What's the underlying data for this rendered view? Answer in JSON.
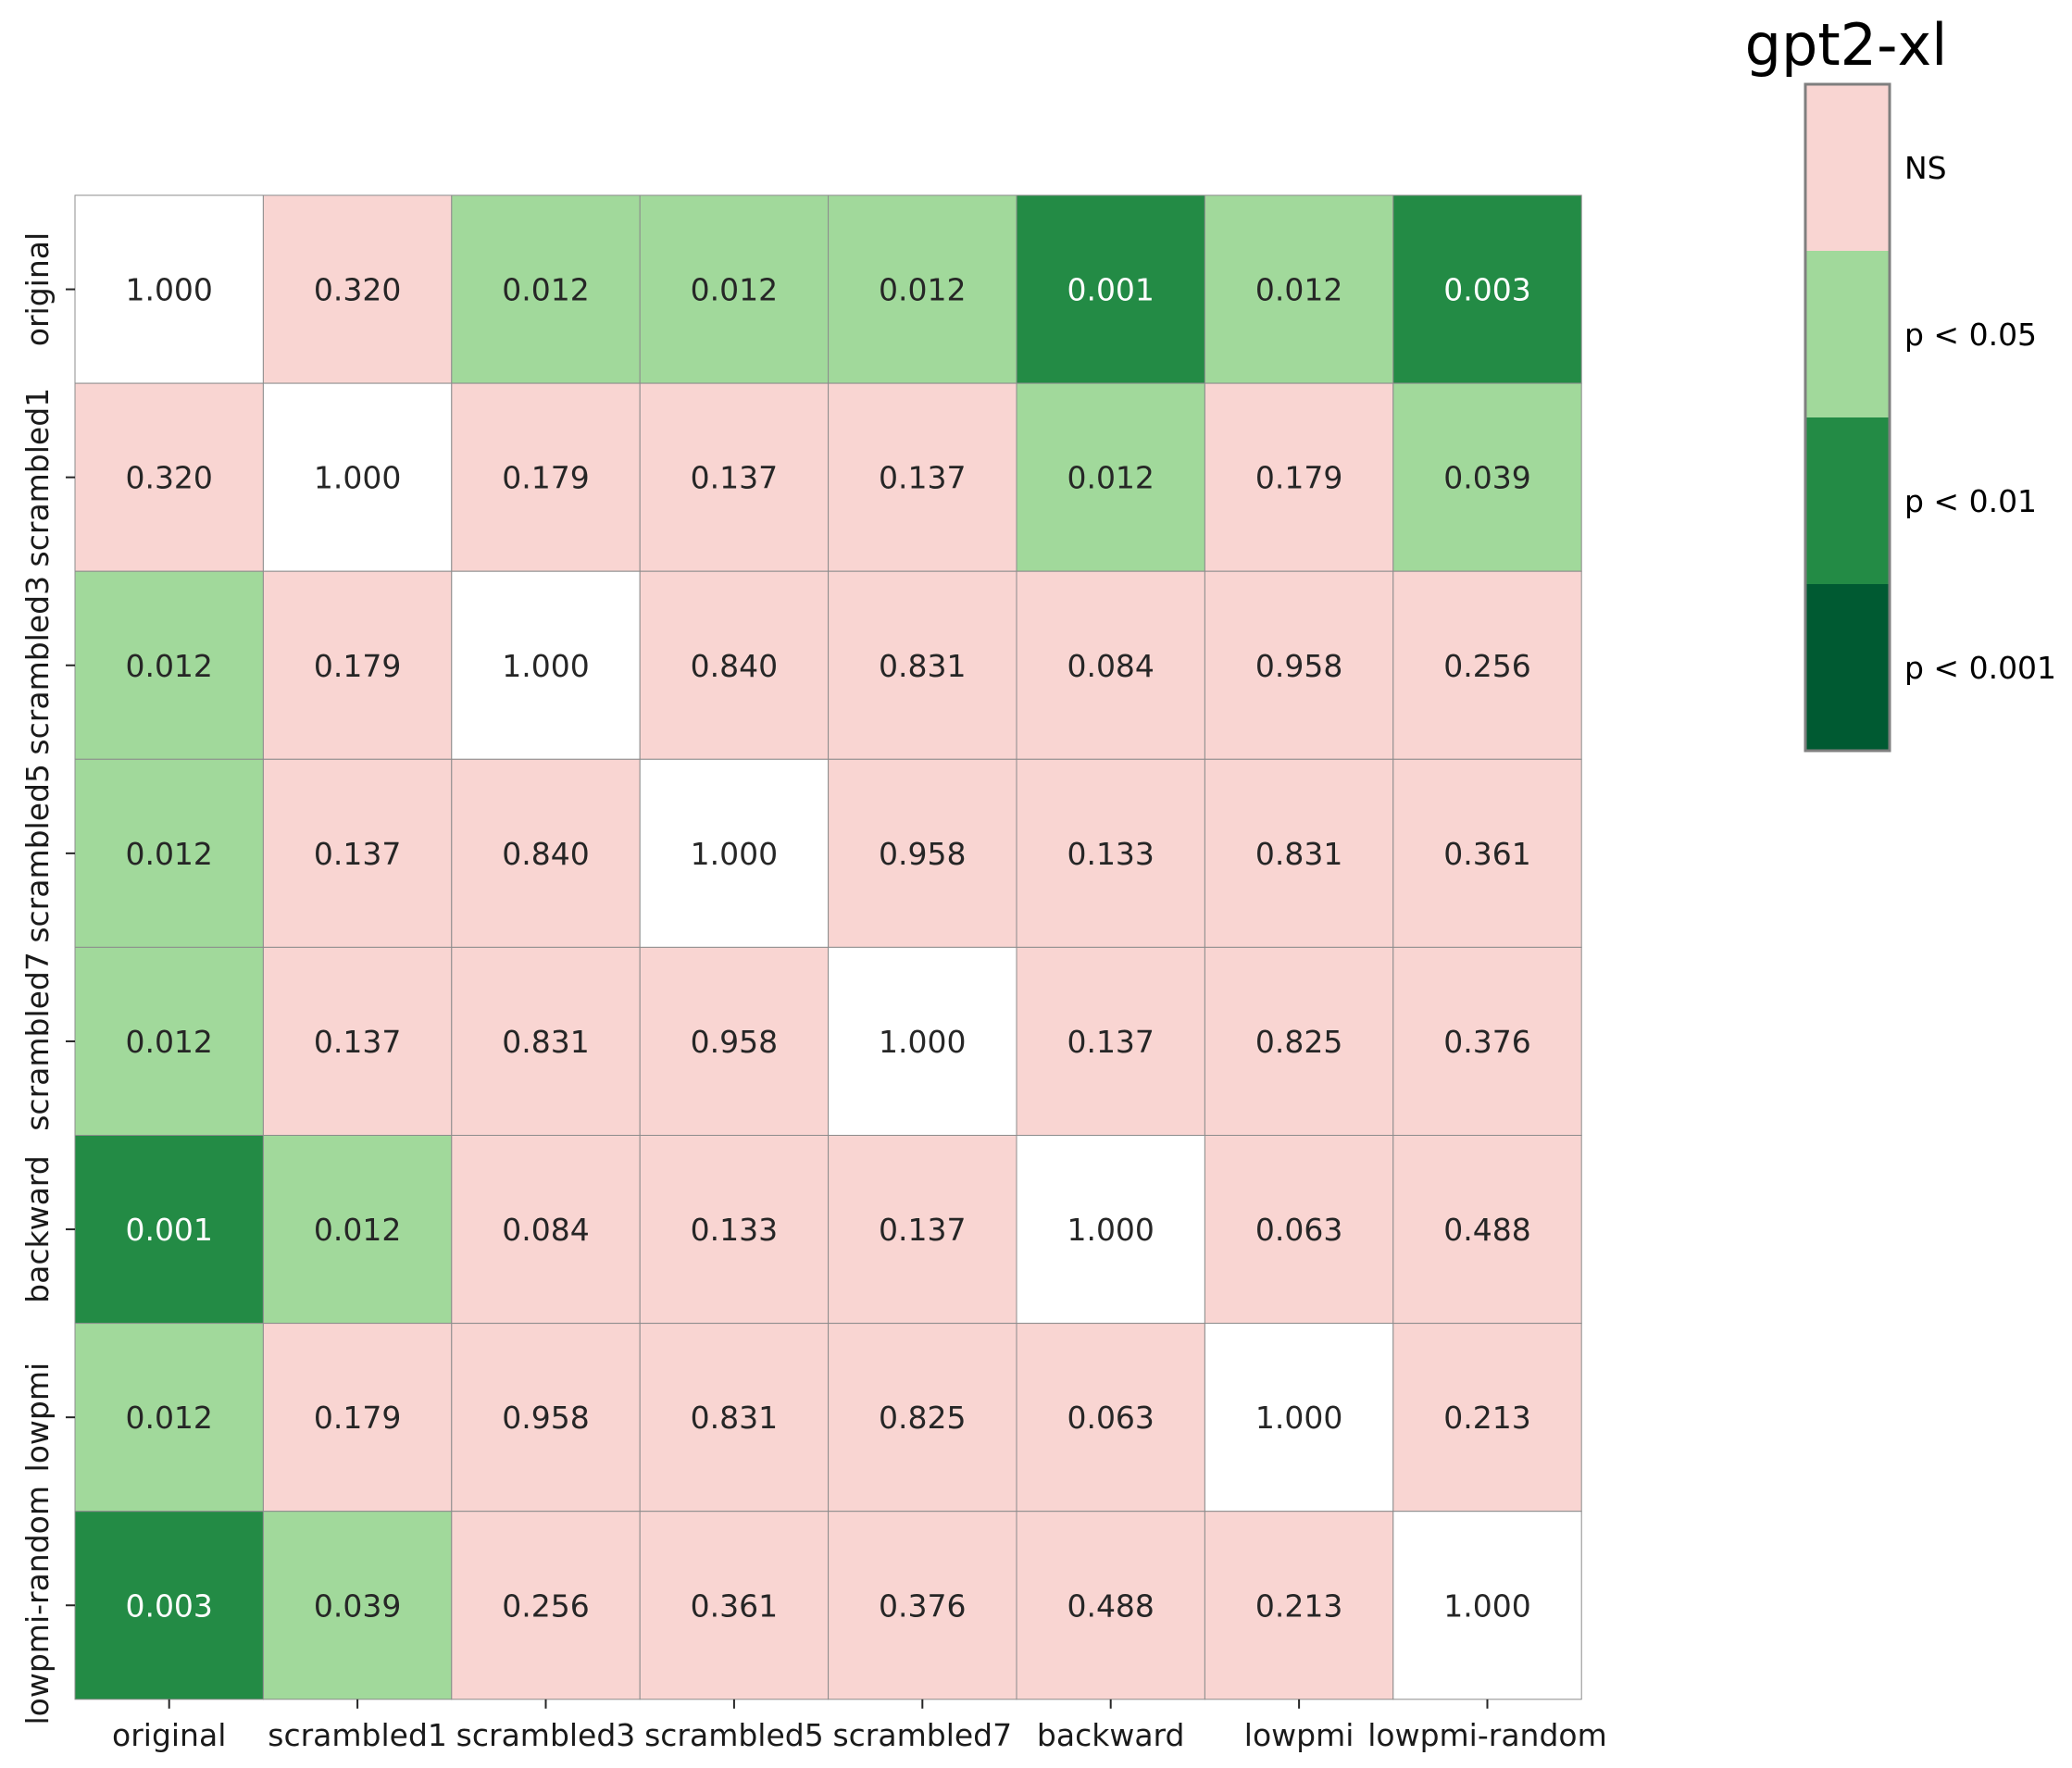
{
  "chart_data": {
    "type": "heatmap",
    "title": "gpt2-xl",
    "row_labels": [
      "original",
      "scrambled1",
      "scrambled3",
      "scrambled5",
      "scrambled7",
      "backward",
      "lowpmi",
      "lowpmi-random"
    ],
    "col_labels": [
      "original",
      "scrambled1",
      "scrambled3",
      "scrambled5",
      "scrambled7",
      "backward",
      "lowpmi",
      "lowpmi-random"
    ],
    "values": [
      [
        1.0,
        0.32,
        0.012,
        0.012,
        0.012,
        0.001,
        0.012,
        0.003
      ],
      [
        0.32,
        1.0,
        0.179,
        0.137,
        0.137,
        0.012,
        0.179,
        0.039
      ],
      [
        0.012,
        0.179,
        1.0,
        0.84,
        0.831,
        0.084,
        0.958,
        0.256
      ],
      [
        0.012,
        0.137,
        0.84,
        1.0,
        0.958,
        0.133,
        0.831,
        0.361
      ],
      [
        0.012,
        0.137,
        0.831,
        0.958,
        1.0,
        0.137,
        0.825,
        0.376
      ],
      [
        0.001,
        0.012,
        0.084,
        0.133,
        0.137,
        1.0,
        0.063,
        0.488
      ],
      [
        0.012,
        0.179,
        0.958,
        0.831,
        0.825,
        0.063,
        1.0,
        0.213
      ],
      [
        0.003,
        0.039,
        0.256,
        0.361,
        0.376,
        0.488,
        0.213,
        1.0
      ]
    ],
    "diagonal_color": "#ffffff",
    "legend": {
      "placement": "top-right",
      "entries": [
        {
          "label": "NS",
          "color": "#f9d5d2"
        },
        {
          "label": "p < 0.05",
          "color": "#a1d99b"
        },
        {
          "label": "p < 0.01",
          "color": "#238b45"
        },
        {
          "label": "p < 0.001",
          "color": "#005a32"
        }
      ]
    },
    "dark_text_color": "#262626",
    "light_text_color": "#ffffff"
  }
}
